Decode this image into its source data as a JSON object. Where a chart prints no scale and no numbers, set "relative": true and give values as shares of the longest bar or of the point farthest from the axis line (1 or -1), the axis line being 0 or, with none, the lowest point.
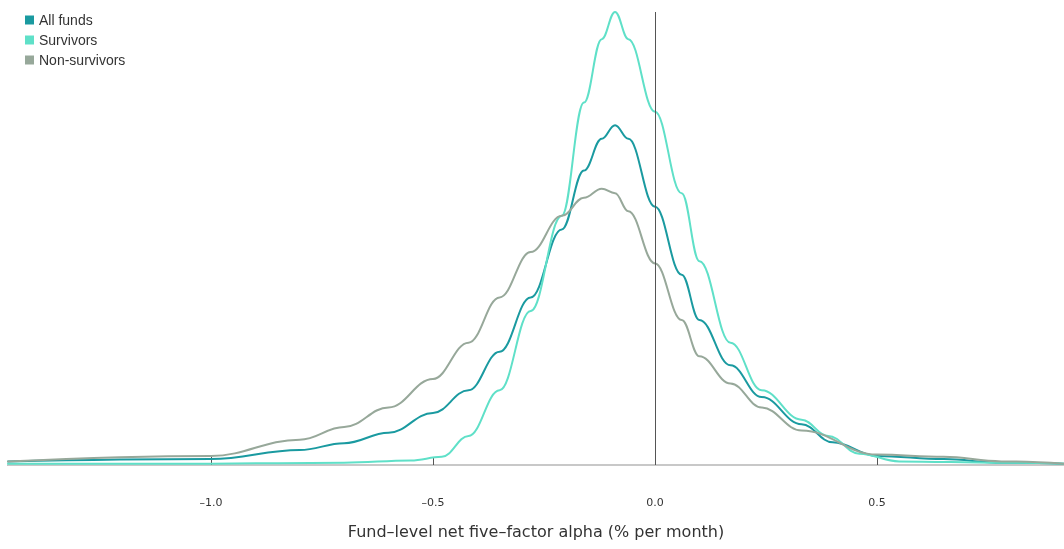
{
  "chart_data": {
    "type": "line",
    "relative": true,
    "xlabel": "Fund–level net five–factor alpha (% per month)",
    "xlim": [
      -1.457,
      0.921
    ],
    "xticks": [
      {
        "value": -1,
        "label": "–1.0"
      },
      {
        "value": -0.5,
        "label": "–0.5"
      },
      {
        "value": 0,
        "label": "0.0"
      },
      {
        "value": 0.5,
        "label": "0.5"
      }
    ],
    "legend": "top left",
    "grid": false,
    "marker": "none",
    "line_style": "solid",
    "ref_lines": [
      {
        "axis": "x",
        "value": 0,
        "color": "#555555"
      }
    ],
    "series": [
      {
        "name": "All funds",
        "color": "#1a9aa0",
        "x": [
          -1.457,
          -1.0,
          -0.8,
          -0.7,
          -0.6,
          -0.5,
          -0.42,
          -0.35,
          -0.28,
          -0.21,
          -0.16,
          -0.12,
          -0.09,
          -0.06,
          0,
          0.06,
          0.1,
          0.17,
          0.24,
          0.33,
          0.4,
          0.5,
          0.65,
          0.78,
          0.921
        ],
        "values": [
          0.008,
          0.013,
          0.033,
          0.048,
          0.071,
          0.115,
          0.165,
          0.25,
          0.37,
          0.52,
          0.65,
          0.72,
          0.75,
          0.72,
          0.57,
          0.42,
          0.32,
          0.22,
          0.15,
          0.09,
          0.05,
          0.02,
          0.013,
          0.005,
          0.003
        ]
      },
      {
        "name": "Survivors",
        "color": "#5fe0c8",
        "x": [
          -1.457,
          -1.0,
          -0.7,
          -0.55,
          -0.48,
          -0.42,
          -0.35,
          -0.28,
          -0.21,
          -0.16,
          -0.12,
          -0.09,
          -0.06,
          0,
          0.06,
          0.1,
          0.17,
          0.24,
          0.33,
          0.39,
          0.46,
          0.55,
          0.78,
          0.921
        ],
        "values": [
          0.003,
          0.003,
          0.005,
          0.01,
          0.018,
          0.064,
          0.165,
          0.34,
          0.55,
          0.8,
          0.94,
          1,
          0.94,
          0.78,
          0.6,
          0.45,
          0.27,
          0.165,
          0.1,
          0.064,
          0.025,
          0.008,
          0.005,
          0.003
        ]
      },
      {
        "name": "Non-survivors",
        "color": "#97a89a",
        "x": [
          -1.457,
          -1.0,
          -0.8,
          -0.7,
          -0.6,
          -0.5,
          -0.42,
          -0.35,
          -0.28,
          -0.21,
          -0.16,
          -0.12,
          -0.09,
          -0.06,
          0,
          0.06,
          0.1,
          0.17,
          0.24,
          0.33,
          0.5,
          0.65,
          0.78,
          0.921
        ],
        "values": [
          0.008,
          0.02,
          0.056,
          0.084,
          0.127,
          0.19,
          0.27,
          0.37,
          0.47,
          0.55,
          0.59,
          0.61,
          0.6,
          0.56,
          0.445,
          0.32,
          0.24,
          0.18,
          0.127,
          0.076,
          0.023,
          0.018,
          0.008,
          0.003
        ]
      }
    ]
  }
}
